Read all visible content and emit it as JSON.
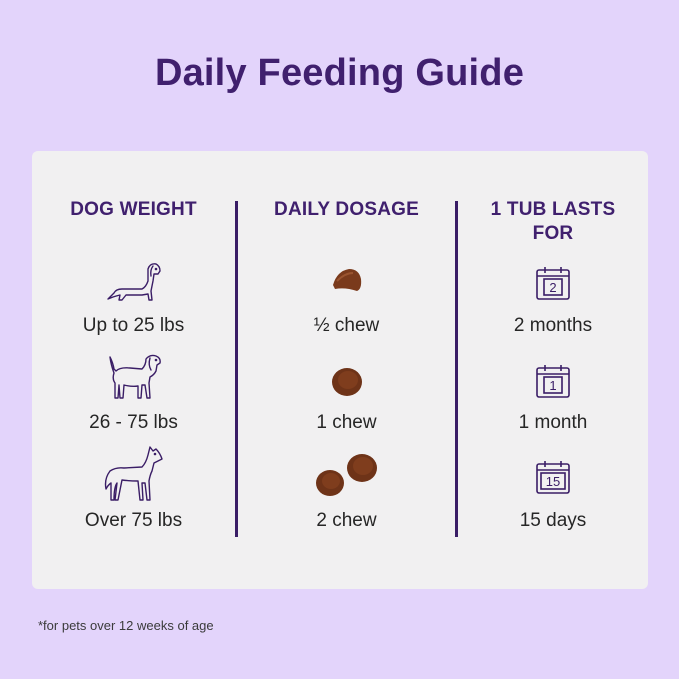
{
  "title": "Daily Feeding Guide",
  "columns": [
    {
      "header": "DOG WEIGHT",
      "rows": [
        {
          "icon": "dachshund-icon",
          "label": "Up to 25 lbs"
        },
        {
          "icon": "beagle-icon",
          "label": "26 - 75 lbs"
        },
        {
          "icon": "great-dane-icon",
          "label": "Over 75 lbs"
        }
      ]
    },
    {
      "header": "DAILY DOSAGE",
      "rows": [
        {
          "icon": "half-chew-icon",
          "label": "½ chew"
        },
        {
          "icon": "one-chew-icon",
          "label": "1 chew"
        },
        {
          "icon": "two-chews-icon",
          "label": "2 chew"
        }
      ]
    },
    {
      "header": "1 TUB LASTS FOR",
      "rows": [
        {
          "icon": "calendar-icon",
          "calendar_number": "2",
          "label": "2 months"
        },
        {
          "icon": "calendar-icon",
          "calendar_number": "1",
          "label": "1 month"
        },
        {
          "icon": "calendar-icon",
          "calendar_number": "15",
          "label": "15 days"
        }
      ]
    }
  ],
  "footnote": "*for pets over 12 weeks of age",
  "colors": {
    "background": "#e3d4fb",
    "card": "#f1f0f1",
    "accent": "#40206e",
    "chew": "#7a3a1c"
  }
}
